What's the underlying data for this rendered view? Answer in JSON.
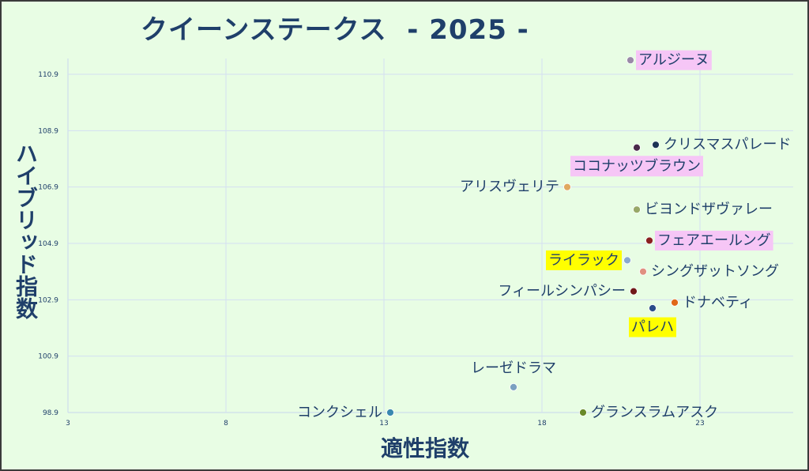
{
  "chart_data": {
    "type": "scatter",
    "title": "クイーンステークス  - 2025 -",
    "xlabel": "適性指数",
    "ylabel": "ハイブリッド指数",
    "xlim": [
      3,
      28
    ],
    "ylim": [
      98.9,
      111.4
    ],
    "x_ticks": [
      "3",
      "8",
      "13",
      "18",
      "23"
    ],
    "y_ticks": [
      "98.9",
      "100.9",
      "102.9",
      "104.9",
      "106.9",
      "108.9",
      "110.9"
    ],
    "grid": true,
    "points": [
      {
        "label": "アルジーヌ",
        "x": 20.8,
        "y": 111.4,
        "color": "#9a8aa8",
        "highlight": "#f6c6f6",
        "side": "right"
      },
      {
        "label": "クリスマスパレード",
        "x": 21.6,
        "y": 108.4,
        "color": "#1e3355",
        "highlight": "",
        "side": "right"
      },
      {
        "label": "ココナッツブラウン",
        "x": 21.0,
        "y": 108.3,
        "color": "#4a2a4a",
        "highlight": "#f6c6f6",
        "side": "below"
      },
      {
        "label": "アリスヴェリテ",
        "x": 18.8,
        "y": 106.9,
        "color": "#e0a860",
        "highlight": "",
        "side": "left"
      },
      {
        "label": "ビヨンドザヴァレー",
        "x": 21.0,
        "y": 106.1,
        "color": "#98a868",
        "highlight": "",
        "side": "right"
      },
      {
        "label": "フェアエールング",
        "x": 21.4,
        "y": 105.0,
        "color": "#8a2020",
        "highlight": "#f6c6f6",
        "side": "right"
      },
      {
        "label": "ライラック",
        "x": 20.7,
        "y": 104.3,
        "color": "#8aaad0",
        "highlight": "#ffff00",
        "side": "left"
      },
      {
        "label": "シングザットソング",
        "x": 21.2,
        "y": 103.9,
        "color": "#e09080",
        "highlight": "",
        "side": "right"
      },
      {
        "label": "フィールシンパシー",
        "x": 20.9,
        "y": 103.2,
        "color": "#701818",
        "highlight": "",
        "side": "left"
      },
      {
        "label": "ドナベティ",
        "x": 22.2,
        "y": 102.8,
        "color": "#e06818",
        "highlight": "",
        "side": "right"
      },
      {
        "label": "パレハ",
        "x": 21.5,
        "y": 102.6,
        "color": "#2a4c8a",
        "highlight": "#ffff00",
        "side": "below"
      },
      {
        "label": "レーゼドラマ",
        "x": 17.1,
        "y": 99.8,
        "color": "#7aa0c0",
        "highlight": "",
        "side": "above"
      },
      {
        "label": "コンクシェル",
        "x": 13.2,
        "y": 98.9,
        "color": "#3a88b0",
        "highlight": "",
        "side": "left"
      },
      {
        "label": "グランスラムアスク",
        "x": 19.3,
        "y": 98.9,
        "color": "#6a8a2a",
        "highlight": "",
        "side": "right"
      }
    ]
  }
}
